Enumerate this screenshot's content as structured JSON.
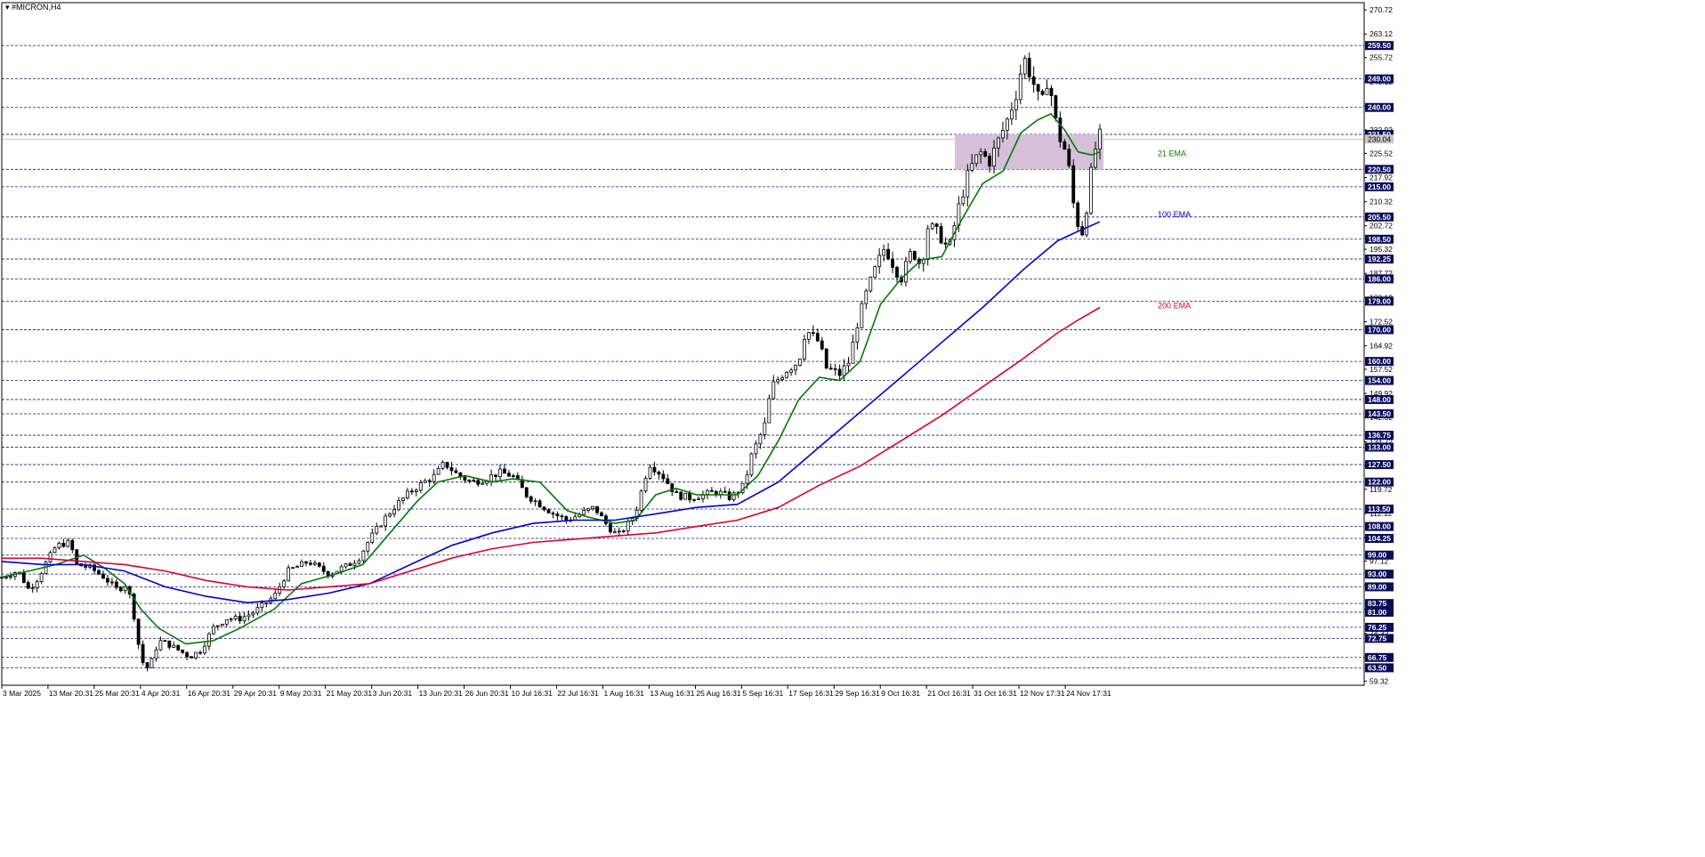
{
  "chart_title": "#MICRON,H4",
  "title_icon": "triangle-down-icon",
  "colors": {
    "background": "#ffffff",
    "frame": "#000000",
    "grid_dashed": "#1f1f7a",
    "label_box": "#0a0a5a",
    "label_text": "#ffffff",
    "axis_text": "#000000",
    "ema21": "#007a00",
    "ema100": "#0000d0",
    "ema200": "#dd0030",
    "zone": "#d5bfd9",
    "candle": "#000000"
  },
  "chart_data": {
    "type": "candlestick",
    "title": "#MICRON,H4",
    "xlabel": "",
    "ylabel": "",
    "ylim": [
      58.0,
      273.0
    ],
    "grid": false,
    "y_ticks": [
      270.72,
      263.12,
      255.72,
      248.12,
      240.52,
      232.92,
      225.52,
      217.92,
      210.32,
      202.72,
      195.32,
      187.72,
      180.12,
      172.52,
      164.92,
      157.52,
      149.92,
      142.32,
      134.72,
      127.12,
      119.72,
      112.12,
      104.52,
      97.12,
      89.52,
      81.92,
      74.32,
      66.72,
      59.32
    ],
    "level_lines": [
      259.5,
      249.0,
      240.0,
      231.5,
      220.5,
      215.0,
      205.5,
      198.5,
      192.25,
      186.0,
      179.0,
      170.0,
      160.0,
      154.0,
      148.0,
      143.5,
      136.75,
      133.0,
      127.5,
      122.0,
      113.5,
      108.0,
      104.25,
      99.0,
      93.0,
      89.0,
      83.75,
      81.0,
      76.25,
      72.75,
      66.75,
      63.5
    ],
    "level_labels": [
      "259.50",
      "249.00",
      "240.00",
      "231.50",
      "220.50",
      "215.00",
      "205.50",
      "198.50",
      "192.25",
      "186.00",
      "179.00",
      "170.00",
      "160.00",
      "154.00",
      "148.00",
      "143.50",
      "136.75",
      "133.00",
      "127.50",
      "122.00",
      "113.50",
      "108.00",
      "104.25",
      "99.00",
      "93.00",
      "89.00",
      "83.75",
      "81.00",
      "76.25",
      "72.75",
      "66.75",
      "63.50"
    ],
    "current_price": 230.04,
    "zone": {
      "x_from": 0.6996,
      "x_to": 0.8086,
      "low": 220.5,
      "high": 231.5
    },
    "x_tick_labels": [
      "3 Mar 2025",
      "13 Mar 20:31",
      "25 Mar 20:31",
      "4 Apr 20:31",
      "16 Apr 20:31",
      "29 Apr 20:31",
      "9 May 20:31",
      "21 May 20:31",
      "3 Jun 20:31",
      "13 Jun 20:31",
      "26 Jun 20:31",
      "10 Jul 16:31",
      "22 Jul 16:31",
      "1 Aug 16:31",
      "13 Aug 16:31",
      "25 Aug 16:31",
      "5 Sep 16:31",
      "17 Sep 16:31",
      "29 Sep 16:31",
      "9 Oct 16:31",
      "21 Oct 16:31",
      "31 Oct 16:31",
      "12 Nov 17:31",
      "24 Nov 17:31"
    ],
    "x_tick_pos": [
      0.0,
      0.0339,
      0.0678,
      0.1018,
      0.1357,
      0.1697,
      0.2036,
      0.2375,
      0.2715,
      0.3054,
      0.3394,
      0.3733,
      0.4072,
      0.4412,
      0.4751,
      0.5091,
      0.543,
      0.5769,
      0.6109,
      0.6448,
      0.6788,
      0.7127,
      0.7466,
      0.7806
    ],
    "price_path": [
      [
        0.0,
        92
      ],
      [
        0.012,
        94
      ],
      [
        0.02,
        88
      ],
      [
        0.027,
        92
      ],
      [
        0.033,
        97
      ],
      [
        0.04,
        102
      ],
      [
        0.05,
        103
      ],
      [
        0.055,
        96
      ],
      [
        0.065,
        95
      ],
      [
        0.075,
        92
      ],
      [
        0.085,
        88
      ],
      [
        0.092,
        90
      ],
      [
        0.098,
        78
      ],
      [
        0.102,
        66
      ],
      [
        0.108,
        63
      ],
      [
        0.115,
        72
      ],
      [
        0.122,
        71
      ],
      [
        0.13,
        69
      ],
      [
        0.138,
        67
      ],
      [
        0.146,
        69
      ],
      [
        0.155,
        76
      ],
      [
        0.165,
        79
      ],
      [
        0.175,
        79
      ],
      [
        0.185,
        81
      ],
      [
        0.2,
        86
      ],
      [
        0.21,
        94
      ],
      [
        0.225,
        97
      ],
      [
        0.24,
        93
      ],
      [
        0.255,
        96
      ],
      [
        0.262,
        98
      ],
      [
        0.27,
        104
      ],
      [
        0.28,
        110
      ],
      [
        0.29,
        115
      ],
      [
        0.3,
        119
      ],
      [
        0.31,
        122
      ],
      [
        0.318,
        124
      ],
      [
        0.325,
        128
      ],
      [
        0.335,
        124
      ],
      [
        0.345,
        122
      ],
      [
        0.355,
        123
      ],
      [
        0.365,
        125
      ],
      [
        0.375,
        124
      ],
      [
        0.385,
        118
      ],
      [
        0.395,
        115
      ],
      [
        0.405,
        112
      ],
      [
        0.415,
        110
      ],
      [
        0.425,
        112
      ],
      [
        0.435,
        114
      ],
      [
        0.445,
        108
      ],
      [
        0.452,
        105
      ],
      [
        0.46,
        109
      ],
      [
        0.465,
        112
      ],
      [
        0.47,
        120
      ],
      [
        0.475,
        128
      ],
      [
        0.485,
        124
      ],
      [
        0.495,
        118
      ],
      [
        0.505,
        117
      ],
      [
        0.515,
        118
      ],
      [
        0.525,
        119
      ],
      [
        0.535,
        117
      ],
      [
        0.545,
        121
      ],
      [
        0.55,
        130
      ],
      [
        0.56,
        140
      ],
      [
        0.565,
        152
      ],
      [
        0.575,
        157
      ],
      [
        0.585,
        160
      ],
      [
        0.59,
        170
      ],
      [
        0.6,
        166
      ],
      [
        0.605,
        158
      ],
      [
        0.615,
        156
      ],
      [
        0.622,
        160
      ],
      [
        0.628,
        172
      ],
      [
        0.635,
        182
      ],
      [
        0.642,
        190
      ],
      [
        0.648,
        196
      ],
      [
        0.655,
        190
      ],
      [
        0.66,
        186
      ],
      [
        0.668,
        195
      ],
      [
        0.675,
        190
      ],
      [
        0.68,
        203
      ],
      [
        0.688,
        200
      ],
      [
        0.695,
        195
      ],
      [
        0.702,
        208
      ],
      [
        0.71,
        220
      ],
      [
        0.718,
        226
      ],
      [
        0.725,
        223
      ],
      [
        0.732,
        230
      ],
      [
        0.738,
        236
      ],
      [
        0.745,
        245
      ],
      [
        0.75,
        256
      ],
      [
        0.757,
        248
      ],
      [
        0.763,
        240
      ],
      [
        0.768,
        250
      ],
      [
        0.775,
        232
      ],
      [
        0.782,
        225
      ],
      [
        0.788,
        205
      ],
      [
        0.794,
        200
      ],
      [
        0.798,
        215
      ],
      [
        0.802,
        226
      ],
      [
        0.806,
        231
      ]
    ],
    "series": [
      {
        "name": "21 EMA",
        "color": "#007a00",
        "points": [
          [
            0.0,
            92
          ],
          [
            0.02,
            94
          ],
          [
            0.04,
            96
          ],
          [
            0.06,
            99
          ],
          [
            0.075,
            95
          ],
          [
            0.09,
            90
          ],
          [
            0.102,
            82
          ],
          [
            0.115,
            76
          ],
          [
            0.135,
            71
          ],
          [
            0.155,
            72
          ],
          [
            0.175,
            76
          ],
          [
            0.2,
            82
          ],
          [
            0.22,
            90
          ],
          [
            0.245,
            93
          ],
          [
            0.265,
            96
          ],
          [
            0.285,
            106
          ],
          [
            0.305,
            116
          ],
          [
            0.32,
            122
          ],
          [
            0.34,
            124
          ],
          [
            0.36,
            122
          ],
          [
            0.375,
            123
          ],
          [
            0.395,
            122
          ],
          [
            0.415,
            113
          ],
          [
            0.43,
            111
          ],
          [
            0.45,
            109
          ],
          [
            0.465,
            110
          ],
          [
            0.48,
            118
          ],
          [
            0.495,
            120
          ],
          [
            0.51,
            118
          ],
          [
            0.525,
            118
          ],
          [
            0.54,
            118
          ],
          [
            0.555,
            124
          ],
          [
            0.57,
            135
          ],
          [
            0.585,
            148
          ],
          [
            0.6,
            155
          ],
          [
            0.615,
            154
          ],
          [
            0.63,
            160
          ],
          [
            0.645,
            178
          ],
          [
            0.66,
            186
          ],
          [
            0.675,
            192
          ],
          [
            0.69,
            193
          ],
          [
            0.705,
            205
          ],
          [
            0.72,
            216
          ],
          [
            0.735,
            220
          ],
          [
            0.748,
            232
          ],
          [
            0.76,
            236
          ],
          [
            0.77,
            238
          ],
          [
            0.78,
            233
          ],
          [
            0.79,
            226
          ],
          [
            0.8,
            225
          ],
          [
            0.806,
            226
          ]
        ]
      },
      {
        "name": "100 EMA",
        "color": "#0000d0",
        "points": [
          [
            0.0,
            97
          ],
          [
            0.03,
            96
          ],
          [
            0.06,
            96
          ],
          [
            0.09,
            94
          ],
          [
            0.12,
            89
          ],
          [
            0.15,
            86
          ],
          [
            0.18,
            84
          ],
          [
            0.21,
            85
          ],
          [
            0.24,
            87
          ],
          [
            0.27,
            90
          ],
          [
            0.3,
            96
          ],
          [
            0.33,
            102
          ],
          [
            0.36,
            106
          ],
          [
            0.39,
            109
          ],
          [
            0.42,
            110
          ],
          [
            0.45,
            110
          ],
          [
            0.48,
            112
          ],
          [
            0.51,
            114
          ],
          [
            0.54,
            115
          ],
          [
            0.57,
            122
          ],
          [
            0.6,
            133
          ],
          [
            0.63,
            144
          ],
          [
            0.66,
            155
          ],
          [
            0.69,
            166
          ],
          [
            0.72,
            177
          ],
          [
            0.75,
            189
          ],
          [
            0.775,
            198
          ],
          [
            0.79,
            201
          ],
          [
            0.806,
            204
          ]
        ]
      },
      {
        "name": "200 EMA",
        "color": "#dd0030",
        "points": [
          [
            0.0,
            98
          ],
          [
            0.03,
            98
          ],
          [
            0.06,
            97
          ],
          [
            0.09,
            96
          ],
          [
            0.12,
            94
          ],
          [
            0.15,
            91
          ],
          [
            0.18,
            89
          ],
          [
            0.21,
            88
          ],
          [
            0.24,
            89
          ],
          [
            0.27,
            90
          ],
          [
            0.3,
            94
          ],
          [
            0.33,
            98
          ],
          [
            0.36,
            101
          ],
          [
            0.39,
            103
          ],
          [
            0.42,
            104
          ],
          [
            0.45,
            105
          ],
          [
            0.48,
            106
          ],
          [
            0.51,
            108
          ],
          [
            0.54,
            110
          ],
          [
            0.57,
            114
          ],
          [
            0.6,
            121
          ],
          [
            0.63,
            127
          ],
          [
            0.66,
            135
          ],
          [
            0.69,
            143
          ],
          [
            0.72,
            152
          ],
          [
            0.75,
            161
          ],
          [
            0.775,
            169
          ],
          [
            0.79,
            173
          ],
          [
            0.806,
            177
          ]
        ]
      }
    ],
    "series_labels": [
      {
        "text": "21 EMA",
        "x": 0.8485,
        "y": 225.52,
        "color": "#007a00"
      },
      {
        "text": "100 EMA",
        "x": 0.8485,
        "y": 206.3,
        "color": "#0000d0"
      },
      {
        "text": "200 EMA",
        "x": 0.8485,
        "y": 177.6,
        "color": "#dd0030"
      }
    ]
  }
}
